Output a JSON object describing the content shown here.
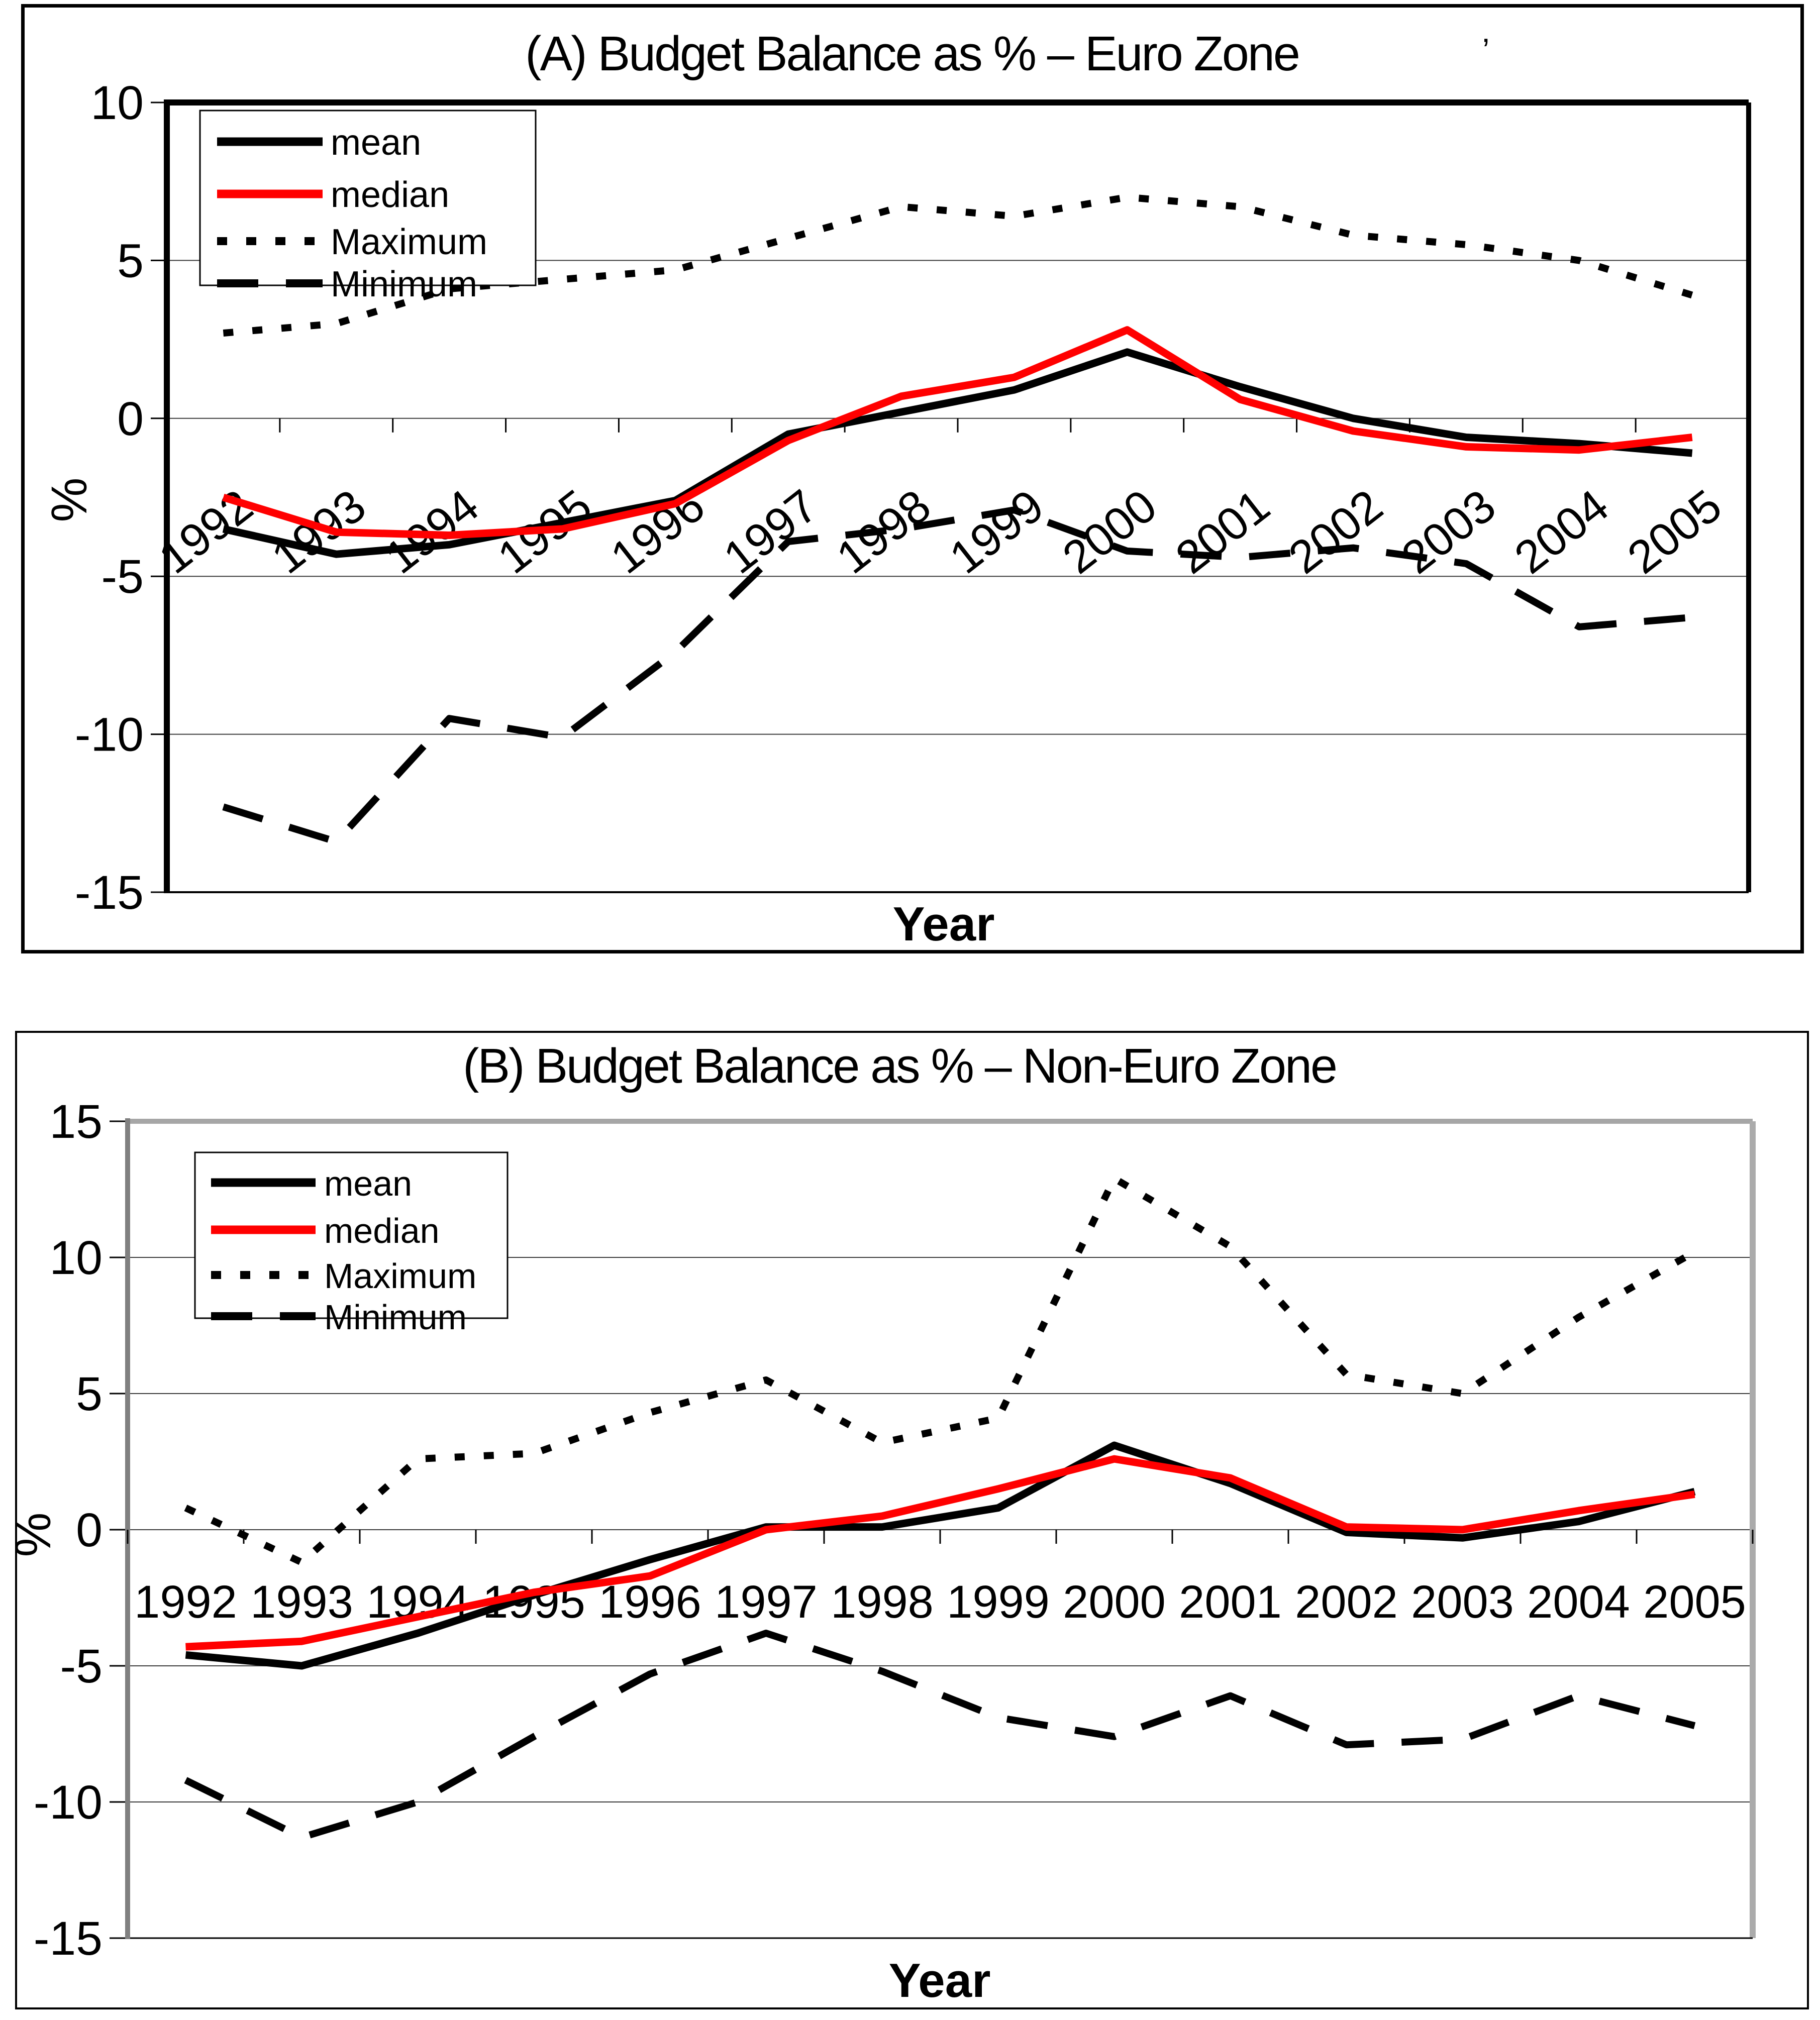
{
  "page": {
    "background": "#ffffff"
  },
  "chart_data": [
    {
      "id": "chart-a",
      "type": "line",
      "title": "(A) Budget Balance as % – Euro Zone",
      "xlabel": "Year",
      "ylabel": "%",
      "ylim": [
        -15,
        10
      ],
      "ytick_labels": [
        "10",
        "5",
        "0",
        "-5",
        "-10",
        "-15"
      ],
      "yticks": [
        10,
        5,
        0,
        -5,
        -10,
        -15
      ],
      "grid": true,
      "legend_position": "top-left",
      "x": [
        1992,
        1993,
        1994,
        1995,
        1996,
        1997,
        1998,
        1999,
        2000,
        2001,
        2002,
        2003,
        2004,
        2005
      ],
      "x_tick_labels": [
        "1992",
        "1993",
        "1994",
        "1995",
        "1996",
        "1997",
        "1998",
        "1999",
        "2000",
        "2001",
        "2002",
        "2003",
        "2004",
        "2005"
      ],
      "x_labels_rotated": true,
      "artifact_mark": "ʼ",
      "series": [
        {
          "name": "mean",
          "color": "#000000",
          "style": "solid",
          "values": [
            -3.5,
            -4.3,
            -4.0,
            -3.3,
            -2.6,
            -0.5,
            0.2,
            0.9,
            2.1,
            1.0,
            0.0,
            -0.6,
            -0.8,
            -1.1
          ]
        },
        {
          "name": "median",
          "color": "#ff0000",
          "style": "solid",
          "values": [
            -2.5,
            -3.6,
            -3.7,
            -3.5,
            -2.7,
            -0.7,
            0.7,
            1.3,
            2.8,
            0.6,
            -0.4,
            -0.9,
            -1.0,
            -0.6
          ]
        },
        {
          "name": "Maximum",
          "color": "#000000",
          "style": "dotted",
          "values": [
            2.7,
            3.0,
            4.1,
            4.4,
            4.7,
            5.7,
            6.7,
            6.4,
            7.0,
            6.7,
            5.8,
            5.5,
            5.0,
            3.9
          ]
        },
        {
          "name": "Minimum",
          "color": "#000000",
          "style": "dashed",
          "values": [
            -12.3,
            -13.4,
            -9.5,
            -10.1,
            -7.4,
            -3.9,
            -3.5,
            -2.9,
            -4.2,
            -4.4,
            -4.1,
            -4.6,
            -6.6,
            -6.3
          ]
        }
      ]
    },
    {
      "id": "chart-b",
      "type": "line",
      "title": "(B) Budget Balance as % – Non-Euro Zone",
      "xlabel": "Year",
      "ylabel": "%",
      "ylim": [
        -15,
        15
      ],
      "ytick_labels": [
        "15",
        "10",
        "5",
        "0",
        "-5",
        "-10",
        "-15"
      ],
      "yticks": [
        15,
        10,
        5,
        0,
        -5,
        -10,
        -15
      ],
      "grid": true,
      "legend_position": "top-left",
      "x": [
        1992,
        1993,
        1994,
        1995,
        1996,
        1997,
        1998,
        1999,
        2000,
        2001,
        2002,
        2003,
        2004,
        2005
      ],
      "x_tick_labels": [
        "1992",
        "1993",
        "1994",
        "1995",
        "1996",
        "1997",
        "1998",
        "1999",
        "2000",
        "2001",
        "2002",
        "2003",
        "2004",
        "2005"
      ],
      "x_labels_rotated": false,
      "series": [
        {
          "name": "mean",
          "color": "#000000",
          "style": "solid",
          "values": [
            -4.6,
            -5.0,
            -3.8,
            -2.4,
            -1.1,
            0.1,
            0.1,
            0.8,
            3.1,
            1.7,
            -0.1,
            -0.3,
            0.3,
            1.4
          ]
        },
        {
          "name": "median",
          "color": "#ff0000",
          "style": "solid",
          "values": [
            -4.3,
            -4.1,
            -3.2,
            -2.3,
            -1.7,
            0.0,
            0.5,
            1.5,
            2.6,
            1.9,
            0.1,
            0.0,
            0.7,
            1.3
          ]
        },
        {
          "name": "Maximum",
          "color": "#000000",
          "style": "dotted",
          "values": [
            0.8,
            -1.2,
            2.6,
            2.8,
            4.3,
            5.5,
            3.2,
            4.1,
            12.9,
            10.4,
            5.7,
            5.0,
            7.8,
            10.2
          ]
        },
        {
          "name": "Minimum",
          "color": "#000000",
          "style": "dashed",
          "values": [
            -9.2,
            -11.3,
            -10.0,
            -7.6,
            -5.3,
            -3.8,
            -5.2,
            -6.9,
            -7.6,
            -6.1,
            -7.9,
            -7.7,
            -6.1,
            -7.2
          ]
        }
      ]
    }
  ],
  "legend": {
    "items": [
      "mean",
      "median",
      "Maximum",
      "Minimum"
    ]
  }
}
